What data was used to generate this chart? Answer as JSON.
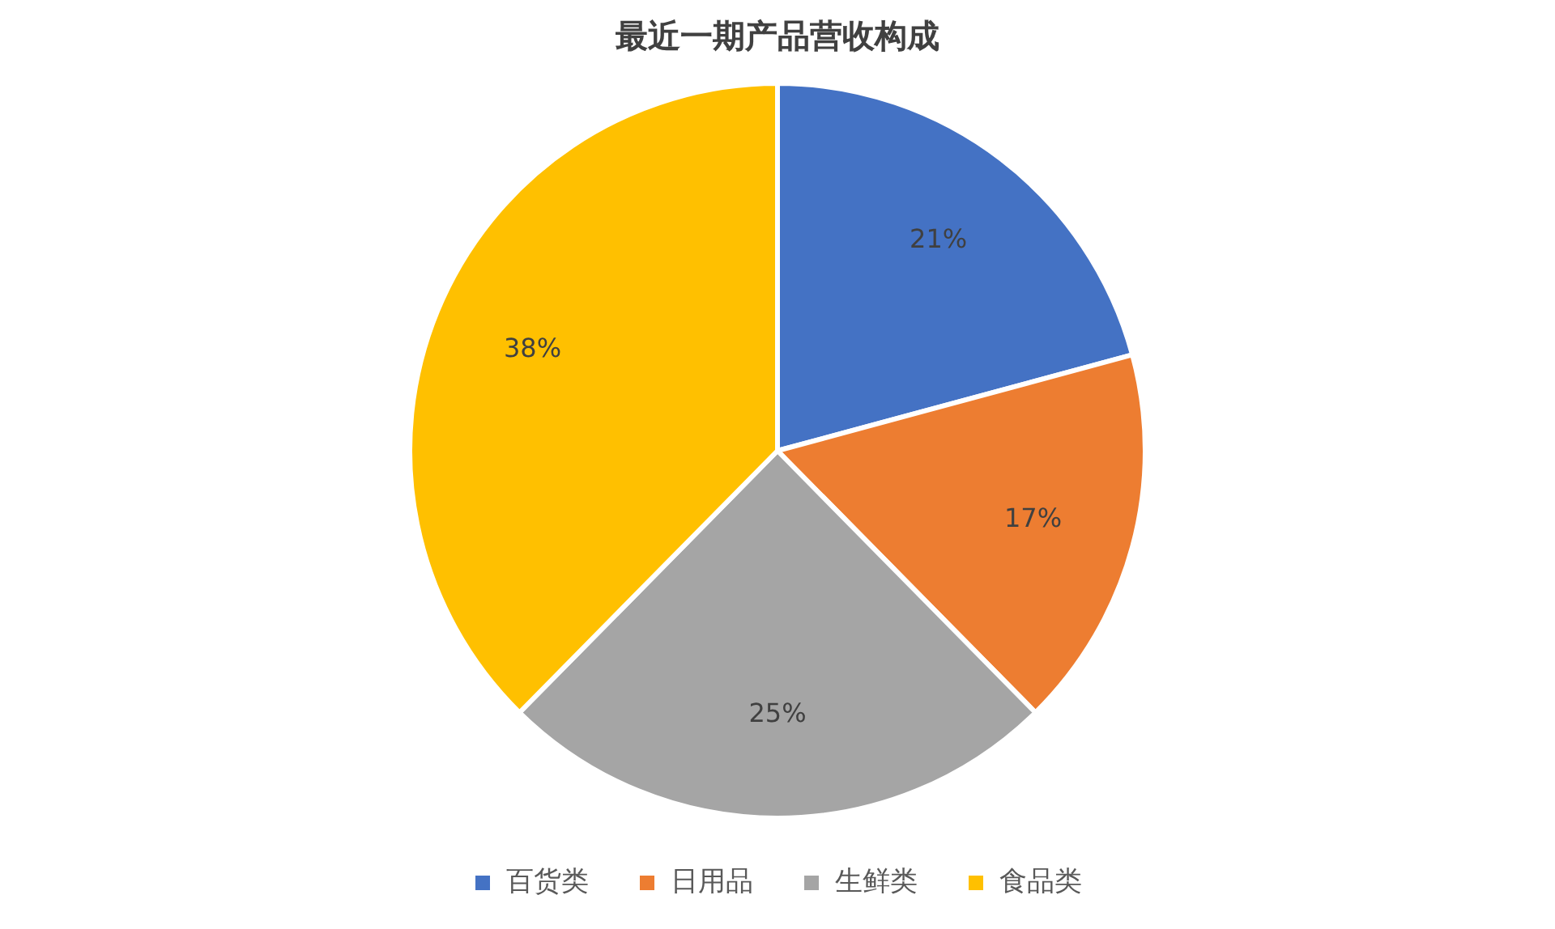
{
  "chart_data": {
    "type": "pie",
    "title": "最近一期产品营收构成",
    "categories": [
      "百货类",
      "日用品",
      "生鲜类",
      "食品类"
    ],
    "values": [
      21,
      17,
      25,
      38
    ],
    "colors": [
      "#4472c4",
      "#ed7d31",
      "#a5a5a5",
      "#ffc000"
    ],
    "value_labels": [
      "21%",
      "17%",
      "25%",
      "38%"
    ],
    "legend": "bottom"
  }
}
